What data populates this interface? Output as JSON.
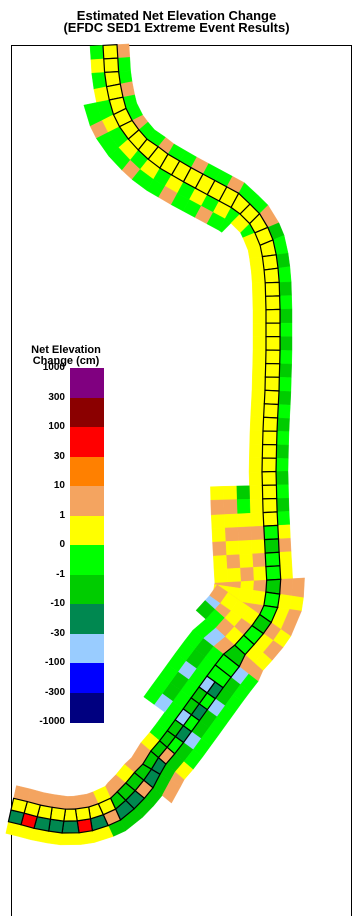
{
  "title": {
    "line1": "Estimated Net Elevation Change",
    "line2": "(EFDC SED1 Extreme Event Results)"
  },
  "legend": {
    "title_line1": "Net Elevation",
    "title_line2": "Change (cm)",
    "ticks": [
      "1000",
      "300",
      "100",
      "30",
      "10",
      "1",
      "0",
      "-1",
      "-10",
      "-30",
      "-100",
      "-300",
      "-1000"
    ],
    "bins": [
      {
        "range": "300 to 1000",
        "color": "#800080"
      },
      {
        "range": "100 to 300",
        "color": "#8b0000"
      },
      {
        "range": "30 to 100",
        "color": "#ff0000"
      },
      {
        "range": "10 to 30",
        "color": "#ff8000"
      },
      {
        "range": "1 to 10",
        "color": "#f4a460"
      },
      {
        "range": "0 to 1",
        "color": "#ffff00"
      },
      {
        "range": "-1 to 0",
        "color": "#00ff00"
      },
      {
        "range": "-10 to -1",
        "color": "#00cc00"
      },
      {
        "range": "-30 to -10",
        "color": "#008850"
      },
      {
        "range": "-100 to -30",
        "color": "#99ccff"
      },
      {
        "range": "-300 to -100",
        "color": "#0000ff"
      },
      {
        "range": "-1000 to -300",
        "color": "#000080"
      }
    ]
  }
}
